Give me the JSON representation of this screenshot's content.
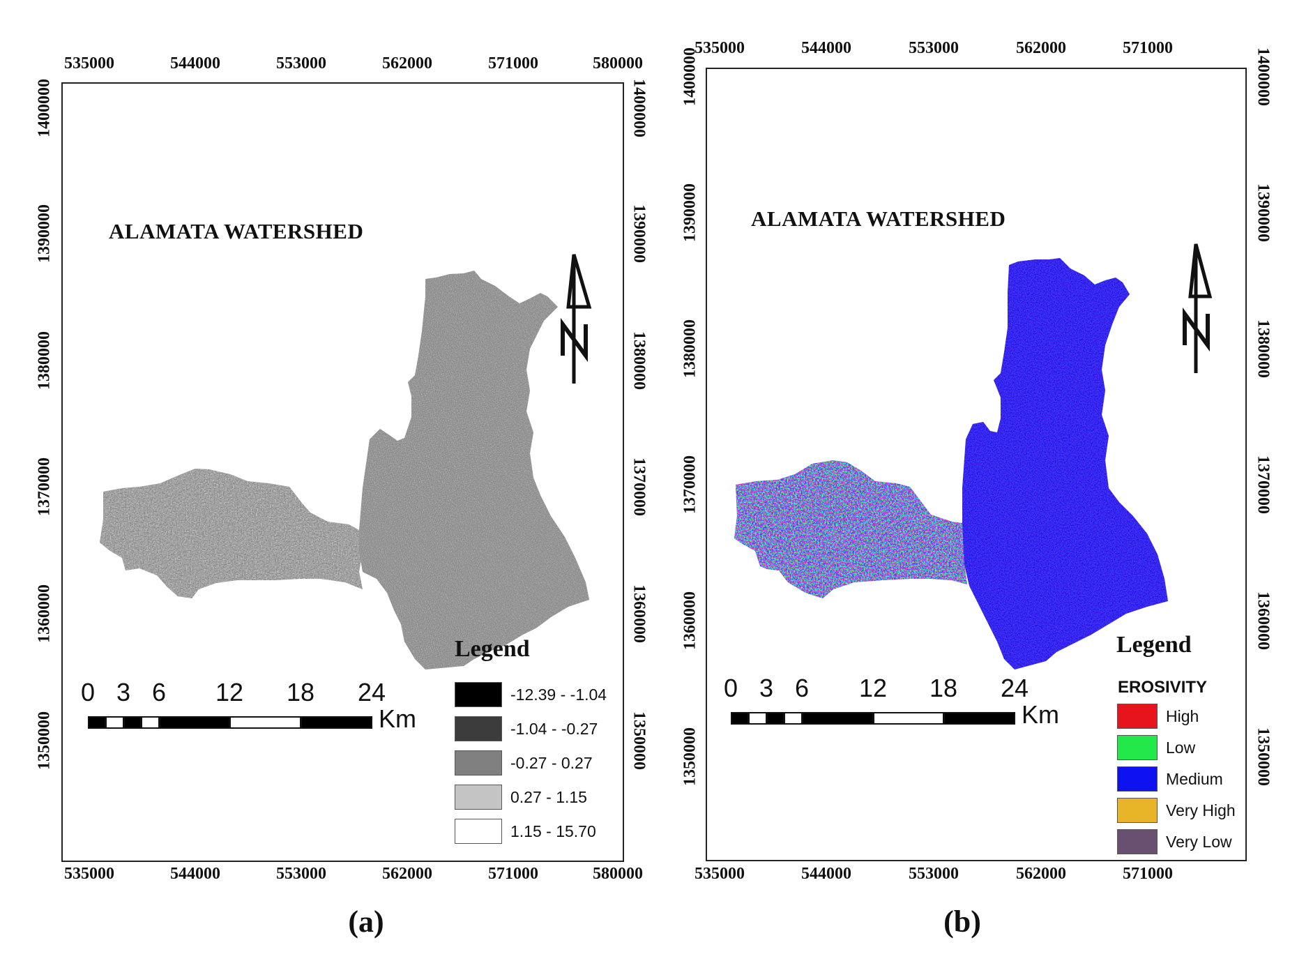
{
  "panels": [
    {
      "id": "a",
      "caption": "(a)",
      "title": "ALAMATA WATERSHED",
      "x_ticks": [
        "535000",
        "544000",
        "553000",
        "562000",
        "571000",
        "580000"
      ],
      "y_ticks": [
        "1400000",
        "1390000",
        "1380000",
        "1370000",
        "1360000",
        "1350000"
      ],
      "legend": {
        "title": "Legend",
        "subtitle": "",
        "items": [
          {
            "label": "-12.39 - -1.04",
            "color": "#000000"
          },
          {
            "label": "-1.04 - -0.27",
            "color": "#3c3c3c"
          },
          {
            "label": "-0.27 - 0.27",
            "color": "#808080"
          },
          {
            "label": "0.27 - 1.15",
            "color": "#c4c4c4"
          },
          {
            "label": "1.15 - 15.70",
            "color": "#ffffff"
          }
        ]
      },
      "scale": {
        "labels": [
          "0",
          "3",
          "6",
          "12",
          "18",
          "24"
        ],
        "unit": "Km"
      }
    },
    {
      "id": "b",
      "caption": "(b)",
      "title": "ALAMATA WATERSHED",
      "x_ticks": [
        "535000",
        "544000",
        "553000",
        "562000",
        "571000"
      ],
      "y_ticks": [
        "1400000",
        "1390000",
        "1380000",
        "1370000",
        "1360000",
        "1350000"
      ],
      "legend": {
        "title": "Legend",
        "subtitle": "EROSIVITY",
        "items": [
          {
            "label": "High",
            "color": "#e8141c"
          },
          {
            "label": "Low",
            "color": "#22e84a"
          },
          {
            "label": "Medium",
            "color": "#0e12f0"
          },
          {
            "label": "Very High",
            "color": "#e8b428"
          },
          {
            "label": "Very Low",
            "color": "#6a5070"
          }
        ]
      },
      "scale": {
        "labels": [
          "0",
          "3",
          "6",
          "12",
          "18",
          "24"
        ],
        "unit": "Km"
      }
    }
  ]
}
